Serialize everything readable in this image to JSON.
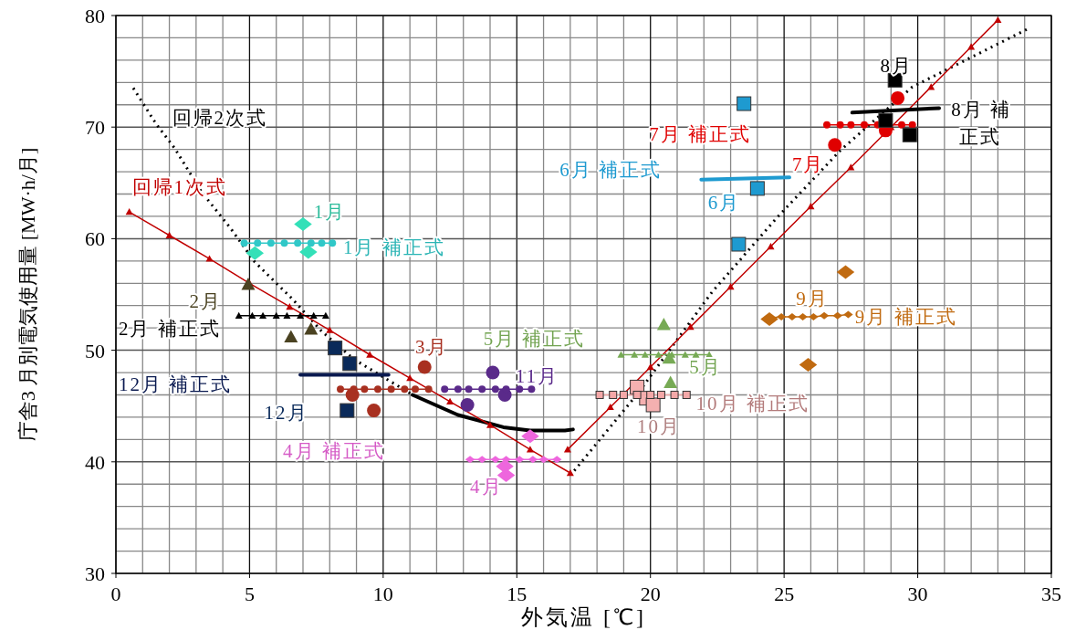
{
  "chart_data": {
    "type": "scatter",
    "xlabel": "外気温 [℃]",
    "ylabel": "庁舎3 月別電気使用量 [MW·h/月]",
    "xlim": [
      0,
      35
    ],
    "ylim": [
      30,
      80
    ],
    "xticks": [
      0,
      5,
      10,
      15,
      20,
      25,
      30,
      35
    ],
    "yticks": [
      30,
      40,
      50,
      60,
      70,
      80
    ],
    "grid": true,
    "series": [
      {
        "name": "回帰2次式",
        "type": "line",
        "color": "#000000",
        "marker": "none",
        "line_style": "dotted",
        "x": [
          0.65,
          1.5,
          2.2,
          3.2,
          4.3,
          5.2,
          6.6,
          7.7,
          8.9,
          10.0,
          11.1
        ],
        "values": [
          73.5,
          70.3,
          68.1,
          64.2,
          60.9,
          57.9,
          54.6,
          51.7,
          49.2,
          47.6,
          46.0
        ]
      },
      {
        "type": "line",
        "color": "#000000",
        "marker": "none",
        "line_style": "solid",
        "x": [
          11.1,
          12.8,
          14.5,
          15.5,
          16.8,
          17.1
        ],
        "values": [
          46.0,
          44.2,
          43.1,
          42.8,
          42.8,
          42.9
        ]
      },
      {
        "type": "line",
        "color": "#000000",
        "marker": "none",
        "line_style": "dotted",
        "x": [
          17.15,
          19.55,
          22.3,
          24.7,
          27.1,
          29.8,
          34.2
        ],
        "values": [
          39.2,
          46.2,
          55.2,
          61.8,
          67.9,
          73.6,
          78.9
        ]
      },
      {
        "name": "回帰1次式",
        "type": "line",
        "color": "#c00000",
        "marker": "triangle",
        "line_style": "solid",
        "x": [
          0.5,
          2,
          3.5,
          5,
          6.5,
          8,
          9.5,
          11,
          12.5,
          14,
          15.5,
          17
        ],
        "values": [
          62.4,
          60.3,
          58.2,
          56.0,
          53.9,
          51.8,
          49.6,
          47.5,
          45.4,
          43.3,
          41.1,
          39.0
        ]
      },
      {
        "type": "line",
        "color": "#c00000",
        "marker": "triangle",
        "line_style": "solid",
        "x": [
          16.9,
          18.5,
          20,
          21.5,
          23,
          24.5,
          26,
          27.5,
          29,
          30.5,
          32,
          33
        ],
        "values": [
          41.1,
          44.9,
          48.5,
          52.1,
          55.7,
          59.3,
          62.9,
          66.4,
          70.0,
          73.6,
          77.2,
          79.6
        ]
      },
      {
        "name": "1月",
        "color": "#33e0b8",
        "marker": "diamond",
        "x": [
          7.0,
          5.2,
          7.2
        ],
        "values": [
          61.3,
          58.7,
          58.8
        ]
      },
      {
        "name": "1月 補正式",
        "type": "line",
        "color": "#30c8c8",
        "marker": "circle",
        "line_style": "solid",
        "x": [
          4.8,
          5.3,
          5.8,
          6.3,
          6.8,
          7.3,
          7.7,
          8.1
        ],
        "values": [
          59.6,
          59.6,
          59.6,
          59.6,
          59.6,
          59.6,
          59.6,
          59.6
        ]
      },
      {
        "name": "2月",
        "color": "#4a4221",
        "marker": "triangle",
        "x": [
          4.95,
          7.3,
          6.55
        ],
        "values": [
          55.9,
          51.9,
          51.2
        ]
      },
      {
        "name": "2月 補正式",
        "type": "line",
        "color": "#000000",
        "marker": "triangle",
        "line_style": "solid",
        "x": [
          4.6,
          5.1,
          5.5,
          6.0,
          6.4,
          6.9,
          7.4,
          7.85
        ],
        "values": [
          53.1,
          53.1,
          53.1,
          53.1,
          53.1,
          53.1,
          53.1,
          53.1
        ]
      },
      {
        "name": "12月",
        "color": "#0a2a5a",
        "marker": "square",
        "x": [
          8.2,
          8.75,
          8.65
        ],
        "values": [
          50.2,
          48.8,
          44.6
        ]
      },
      {
        "name": "12月 補正式",
        "type": "line",
        "color": "#0a1a50",
        "marker": "none",
        "line_style": "solid",
        "x": [
          6.9,
          10.2
        ],
        "values": [
          47.8,
          47.8
        ]
      },
      {
        "name": "3月",
        "color": "#a83020",
        "marker": "circle",
        "x": [
          11.55,
          8.85,
          9.65
        ],
        "values": [
          48.5,
          46.0,
          44.6
        ]
      },
      {
        "type": "line",
        "color": "#a83020",
        "marker": "circle",
        "line_style": "solid",
        "x": [
          8.4,
          8.9,
          9.3,
          9.8,
          10.3,
          10.8,
          11.2,
          11.7
        ],
        "values": [
          46.5,
          46.5,
          46.5,
          46.5,
          46.5,
          46.5,
          46.5,
          46.5
        ]
      },
      {
        "name": "11月",
        "color": "#5a2a8a",
        "marker": "circle",
        "x": [
          14.1,
          13.15,
          14.55
        ],
        "values": [
          48.0,
          45.1,
          46.0
        ]
      },
      {
        "type": "line",
        "color": "#5a2a8a",
        "marker": "circle",
        "line_style": "solid",
        "x": [
          12.3,
          12.8,
          13.2,
          13.7,
          14.2,
          14.6,
          15.1,
          15.55
        ],
        "values": [
          46.5,
          46.5,
          46.5,
          46.5,
          46.5,
          46.5,
          46.5,
          46.5
        ]
      },
      {
        "name": "4月",
        "color": "#ee66dd",
        "marker": "diamond",
        "x": [
          15.5,
          14.55,
          14.6
        ],
        "values": [
          42.3,
          39.6,
          38.8
        ]
      },
      {
        "name": "4月 補正式",
        "type": "line",
        "color": "#ee66dd",
        "marker": "diamond",
        "line_style": "solid",
        "x": [
          13.25,
          13.7,
          14.2,
          14.6,
          15.1,
          15.6,
          16.0,
          16.5
        ],
        "values": [
          40.2,
          40.2,
          40.2,
          40.2,
          40.2,
          40.2,
          40.2,
          40.2
        ]
      },
      {
        "name": "5月",
        "color": "#77aa55",
        "marker": "triangle",
        "x": [
          20.5,
          20.7,
          20.75
        ],
        "values": [
          52.3,
          49.3,
          47.1
        ]
      },
      {
        "name": "5月 補正式",
        "type": "line",
        "color": "#77aa55",
        "marker": "triangle",
        "line_style": "solid",
        "x": [
          18.9,
          19.4,
          19.8,
          20.3,
          20.8,
          21.3,
          21.7,
          22.2
        ],
        "values": [
          49.6,
          49.6,
          49.6,
          49.6,
          49.6,
          49.6,
          49.6,
          49.6
        ]
      },
      {
        "name": "10月",
        "color": "#f4b0b0",
        "marker": "square",
        "x": [
          19.5,
          19.85,
          20.1
        ],
        "values": [
          46.7,
          45.7,
          45.1
        ]
      },
      {
        "name": "10月 補正式",
        "type": "line",
        "color": "#f4a8a8",
        "marker": "square",
        "line_style": "solid",
        "x": [
          18.1,
          18.6,
          19.0,
          19.5,
          20.0,
          20.4,
          20.9,
          21.35
        ],
        "values": [
          46.0,
          46.0,
          46.0,
          46.0,
          46.0,
          46.0,
          46.0,
          46.0
        ]
      },
      {
        "name": "6月",
        "color": "#1e9ad0",
        "marker": "square",
        "x": [
          23.5,
          24.0,
          23.3
        ],
        "values": [
          72.1,
          64.5,
          59.5
        ]
      },
      {
        "name": "6月 補正式",
        "type": "line",
        "color": "#1e9ad0",
        "marker": "none",
        "line_style": "solid",
        "x": [
          21.9,
          25.2
        ],
        "values": [
          65.3,
          65.5
        ]
      },
      {
        "name": "7月",
        "color": "#e00000",
        "marker": "circle",
        "x": [
          29.25,
          26.9,
          28.8
        ],
        "values": [
          72.6,
          68.4,
          69.7
        ]
      },
      {
        "name": "7月 補正式",
        "type": "line",
        "color": "#e00000",
        "marker": "circle",
        "line_style": "solid",
        "x": [
          26.6,
          27.1,
          27.5,
          28.0,
          28.5,
          28.9,
          29.4,
          29.8
        ],
        "values": [
          70.2,
          70.2,
          70.2,
          70.2,
          70.2,
          70.2,
          70.2,
          70.2
        ]
      },
      {
        "name": "8月",
        "color": "#000000",
        "marker": "square",
        "x": [
          29.15,
          28.8,
          29.7
        ],
        "values": [
          74.2,
          70.6,
          69.3
        ]
      },
      {
        "name": "8月 補正式",
        "type": "line",
        "color": "#000000",
        "marker": "none",
        "line_style": "solid",
        "x": [
          27.55,
          30.8
        ],
        "values": [
          71.3,
          71.7
        ]
      },
      {
        "name": "9月",
        "color": "#c06a10",
        "marker": "diamond",
        "x": [
          27.3,
          25.9,
          24.45
        ],
        "values": [
          57.0,
          48.7,
          52.8
        ]
      },
      {
        "name": "9月 補正式",
        "type": "line",
        "color": "#c06a10",
        "marker": "diamond",
        "line_style": "solid",
        "x": [
          24.45,
          24.9,
          25.3,
          25.7,
          26.1,
          26.5,
          27.0,
          27.4
        ],
        "values": [
          52.9,
          53.0,
          53.0,
          53.0,
          53.0,
          53.1,
          53.1,
          53.2
        ]
      }
    ]
  }
}
